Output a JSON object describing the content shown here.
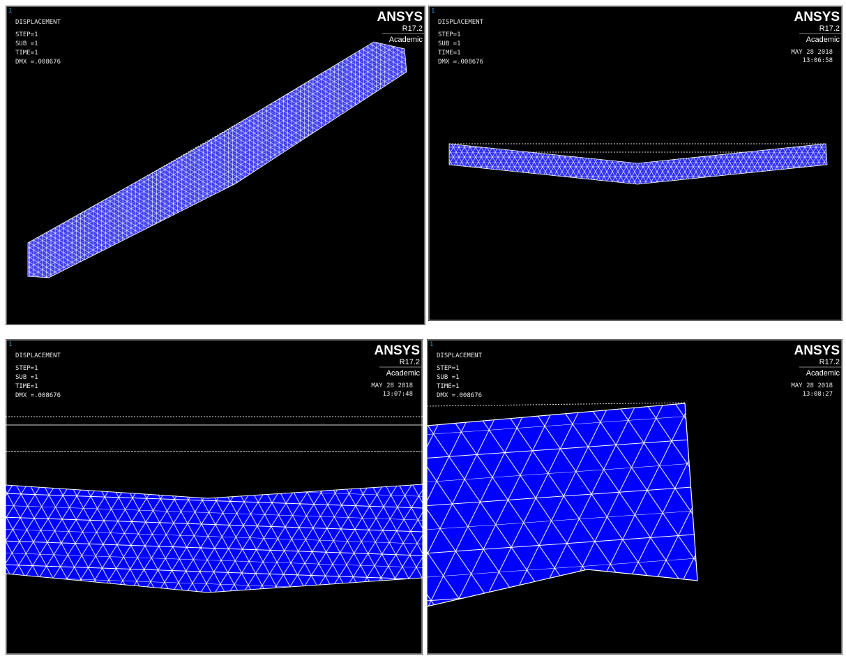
{
  "panels": [
    {
      "window": "1",
      "title": "DISPLACEMENT",
      "info": [
        "STEP=1",
        "SUB =1",
        "TIME=1",
        "DMX =.008676"
      ],
      "brand": "ANSYS",
      "version": "R17.2",
      "license": "Academic"
    },
    {
      "window": "1",
      "title": "DISPLACEMENT",
      "info": [
        "STEP=1",
        "SUB =1",
        "TIME=1",
        "DMX =.008676"
      ],
      "brand": "ANSYS",
      "version": "R17.2",
      "license": "Academic",
      "date": "MAY 28 2018",
      "time": "13:06:58"
    },
    {
      "window": "1",
      "title": "DISPLACEMENT",
      "info": [
        "STEP=1",
        "SUB =1",
        "TIME=1",
        "DMX =.008676"
      ],
      "brand": "ANSYS",
      "version": "R17.2",
      "license": "Academic",
      "date": "MAY 28 2018",
      "time": "13:07:48"
    },
    {
      "window": "1",
      "title": "DISPLACEMENT",
      "info": [
        "STEP=1",
        "SUB =1",
        "TIME=1",
        "DMX =.008676"
      ],
      "brand": "ANSYS",
      "version": "R17.2",
      "license": "Academic",
      "date": "MAY 28 2018",
      "time": "13:08:27"
    }
  ]
}
